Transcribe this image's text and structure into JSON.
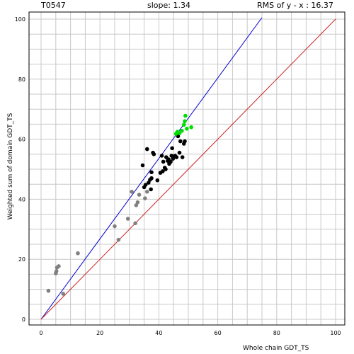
{
  "header": {
    "target": "T0547",
    "slope": "slope: 1.34",
    "rms": "RMS of  y - x : 16.37"
  },
  "chart_data": {
    "type": "scatter",
    "xlabel": "Whole chain GDT_TS",
    "ylabel": "Weighted sum of domain GDT_TS",
    "xlim": [
      0,
      100
    ],
    "ylim": [
      0,
      100
    ],
    "x_ticks": [
      "0",
      "20",
      "40",
      "60",
      "80",
      "100"
    ],
    "y_ticks": [
      "0",
      "20",
      "40",
      "60",
      "80",
      "100"
    ],
    "grid": true,
    "lines": [
      {
        "name": "fit",
        "slope": 1.34,
        "x_range": [
          0,
          75
        ],
        "color": "#0000cc"
      },
      {
        "name": "y = x",
        "slope": 1.0,
        "x_range": [
          0,
          100
        ],
        "color": "#cc2222"
      }
    ],
    "series": [
      {
        "color": "#808080",
        "points": [
          [
            2.5,
            9.5
          ],
          [
            5,
            15.3
          ],
          [
            5.2,
            16
          ],
          [
            5.4,
            17.2
          ],
          [
            6,
            17.7
          ],
          [
            7.5,
            8.5
          ],
          [
            12.5,
            22
          ],
          [
            25,
            31
          ],
          [
            26.3,
            26.5
          ],
          [
            29.5,
            33.5
          ],
          [
            30.8,
            42.5
          ],
          [
            32,
            32
          ],
          [
            32.3,
            38
          ],
          [
            32.8,
            39
          ],
          [
            33.3,
            41.5
          ],
          [
            35.3,
            40.3
          ],
          [
            36,
            42.5
          ]
        ]
      },
      {
        "color": "#000000",
        "points": [
          [
            34.5,
            51.3
          ],
          [
            35,
            44
          ],
          [
            35.5,
            44.8
          ],
          [
            36,
            56.7
          ],
          [
            36.5,
            45.5
          ],
          [
            37,
            46.5
          ],
          [
            37.3,
            43.3
          ],
          [
            37.5,
            47
          ],
          [
            37.5,
            49
          ],
          [
            38,
            55.5
          ],
          [
            38.3,
            55
          ],
          [
            39.5,
            46.3
          ],
          [
            40.5,
            48.8
          ],
          [
            41,
            54.5
          ],
          [
            41.3,
            49.3
          ],
          [
            41.5,
            52.5
          ],
          [
            42,
            50.5
          ],
          [
            42.3,
            50
          ],
          [
            42.5,
            54
          ],
          [
            43,
            52.8
          ],
          [
            43.3,
            53.3
          ],
          [
            43.5,
            51.8
          ],
          [
            43.8,
            52.3
          ],
          [
            44,
            52.5
          ],
          [
            44.3,
            54.5
          ],
          [
            44.5,
            57
          ],
          [
            44.8,
            53.5
          ],
          [
            45.5,
            54.5
          ],
          [
            46,
            54
          ],
          [
            46.5,
            61
          ],
          [
            47,
            55.5
          ],
          [
            47.3,
            59.3
          ],
          [
            48,
            54
          ],
          [
            48.5,
            58.5
          ],
          [
            48.8,
            59.3
          ]
        ]
      },
      {
        "color": "#00dd00",
        "points": [
          [
            45.8,
            61.8
          ],
          [
            46.3,
            62.5
          ],
          [
            47,
            62
          ],
          [
            47.8,
            62.8
          ],
          [
            48.5,
            64.8
          ],
          [
            48.8,
            66
          ],
          [
            49,
            67.8
          ],
          [
            49.5,
            63.5
          ],
          [
            51,
            64
          ]
        ]
      }
    ]
  }
}
